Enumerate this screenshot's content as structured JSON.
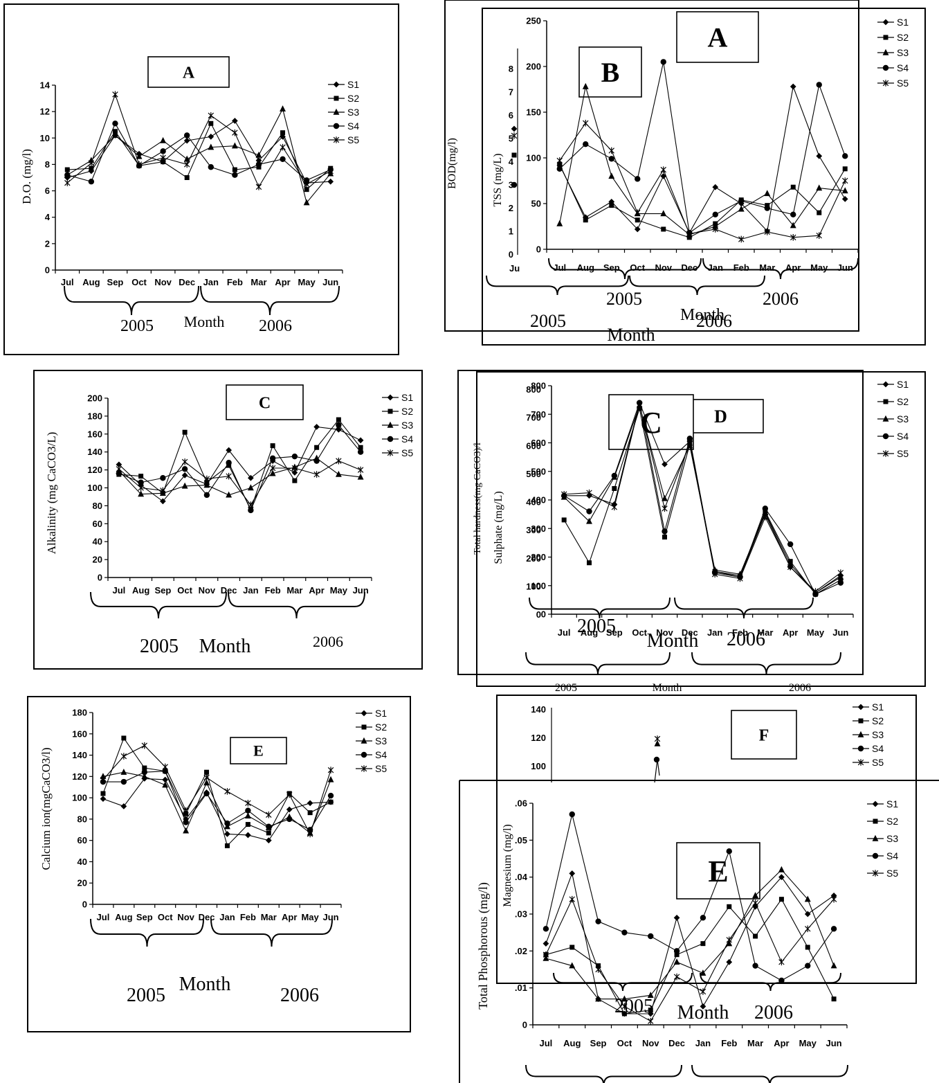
{
  "figure_title": "",
  "months": [
    "Jul",
    "Aug",
    "Sep",
    "Oct",
    "Nov",
    "Dec",
    "Jan",
    "Feb",
    "Mar",
    "Apr",
    "May",
    "Jun"
  ],
  "year_labels": [
    "2005",
    "2006"
  ],
  "month_word": "Month",
  "legend_names": [
    "S1",
    "S2",
    "S3",
    "S4",
    "S5"
  ],
  "colors": {
    "line": "#000000",
    "background": "#ffffff"
  },
  "chart_data": [
    {
      "type": "line",
      "panel_letter": "A",
      "title": "",
      "xlabel": "Month",
      "ylabel": "D.O. (mg/l)",
      "ylim": [
        0,
        14
      ],
      "yticks": [
        0,
        2,
        4,
        6,
        8,
        10,
        12,
        14
      ],
      "categories": [
        "Jul",
        "Aug",
        "Sep",
        "Oct",
        "Nov",
        "Dec",
        "Jan",
        "Feb",
        "Mar",
        "Apr",
        "May",
        "Jun"
      ],
      "series": [
        {
          "name": "S1",
          "marker": "diamond",
          "values": [
            7.0,
            7.5,
            10.2,
            8.8,
            8.2,
            9.8,
            10.1,
            11.3,
            8.3,
            10.1,
            6.6,
            6.7
          ]
        },
        {
          "name": "S2",
          "marker": "square",
          "values": [
            7.6,
            7.7,
            10.5,
            7.9,
            8.2,
            7.0,
            11.1,
            7.6,
            7.8,
            10.4,
            6.1,
            7.7
          ]
        },
        {
          "name": "S3",
          "marker": "triangle",
          "values": [
            7.2,
            8.3,
            10.2,
            8.6,
            9.8,
            8.4,
            9.3,
            9.4,
            8.7,
            12.2,
            5.1,
            7.3
          ]
        },
        {
          "name": "S4",
          "marker": "circle",
          "values": [
            7.2,
            6.7,
            11.1,
            7.9,
            9.0,
            10.2,
            7.8,
            7.2,
            8.0,
            8.4,
            6.8,
            7.6
          ]
        },
        {
          "name": "S5",
          "marker": "star",
          "values": [
            6.6,
            8.1,
            13.3,
            8.0,
            8.5,
            8.0,
            11.7,
            10.4,
            6.3,
            9.3,
            6.5,
            7.5
          ]
        }
      ]
    },
    {
      "type": "line",
      "panel_letter": "A",
      "title": "",
      "xlabel": "Month",
      "ylabel": "BOD(mg/l)",
      "ylim": [
        0,
        250
      ],
      "yticks": [
        0,
        50,
        100,
        150,
        200,
        250
      ],
      "categories": [
        "Jul",
        "Aug",
        "Sep",
        "Oct",
        "Nov",
        "Dec",
        "Jan",
        "Feb",
        "Mar",
        "Apr",
        "May",
        "Jun"
      ],
      "series": [
        {
          "name": "S1",
          "marker": "diamond",
          "values": [
            92,
            35,
            52,
            22,
            80,
            18,
            68,
            50,
            20,
            178,
            102,
            55
          ]
        },
        {
          "name": "S2",
          "marker": "square",
          "values": [
            93,
            32,
            48,
            32,
            22,
            13,
            28,
            54,
            48,
            68,
            40,
            88
          ]
        },
        {
          "name": "S3",
          "marker": "triangle",
          "values": [
            28,
            178,
            80,
            39,
            39,
            16,
            25,
            44,
            61,
            26,
            67,
            64
          ]
        },
        {
          "name": "S4",
          "marker": "circle",
          "values": [
            88,
            115,
            99,
            77,
            205,
            18,
            38,
            53,
            45,
            38,
            180,
            102
          ]
        },
        {
          "name": "S5",
          "marker": "star",
          "values": [
            97,
            138,
            108,
            40,
            87,
            17,
            22,
            11,
            19,
            13,
            15,
            75
          ]
        }
      ],
      "overlapped_panel": {
        "panel_letter": "B",
        "ylabel": "TSS (mg/L)",
        "yticks": [
          0,
          1,
          2,
          3,
          4,
          5,
          6,
          7,
          8
        ],
        "year_labels": [
          "2005",
          "2006"
        ],
        "xlabel": "Month",
        "first_tick": "Ju"
      }
    },
    {
      "type": "line",
      "panel_letter": "C",
      "title": "",
      "xlabel": "Month",
      "ylabel": "Alkalinity (mg CaCO3/L)",
      "ylim": [
        0,
        200
      ],
      "yticks": [
        0,
        20,
        40,
        60,
        80,
        100,
        120,
        140,
        160,
        180,
        200
      ],
      "categories": [
        "Jul",
        "Aug",
        "Sep",
        "Oct",
        "Nov",
        "Dec",
        "Jan",
        "Feb",
        "Mar",
        "Apr",
        "May",
        "Jun"
      ],
      "series": [
        {
          "name": "S1",
          "marker": "diamond",
          "values": [
            126,
            103,
            85,
            114,
            104,
            142,
            111,
            130,
            117,
            168,
            165,
            153
          ]
        },
        {
          "name": "S2",
          "marker": "square",
          "values": [
            115,
            113,
            94,
            162,
            106,
            125,
            76,
            147,
            108,
            145,
            176,
            145
          ]
        },
        {
          "name": "S3",
          "marker": "triangle",
          "values": [
            119,
            93,
            94,
            102,
            103,
            92,
            100,
            116,
            123,
            133,
            115,
            112
          ]
        },
        {
          "name": "S4",
          "marker": "circle",
          "values": [
            116,
            106,
            111,
            121,
            92,
            128,
            75,
            133,
            135,
            130,
            170,
            140
          ]
        },
        {
          "name": "S5",
          "marker": "star",
          "values": [
            121,
            100,
            97,
            129,
            110,
            113,
            81,
            122,
            122,
            115,
            130,
            120
          ]
        }
      ]
    },
    {
      "type": "line",
      "panel_letter": "C",
      "title": "",
      "xlabel": "Month",
      "ylabel": "Total hardness(mg CaCO3)/l",
      "ylim": [
        0,
        800
      ],
      "yticks": [
        0,
        100,
        200,
        300,
        400,
        500,
        600,
        700,
        800
      ],
      "categories": [
        "Jul",
        "Aug",
        "Sep",
        "Oct",
        "Nov",
        "Dec",
        "Jan",
        "Feb",
        "Mar",
        "Apr",
        "May",
        "Jun"
      ],
      "series": [
        {
          "name": "S1",
          "marker": "diamond",
          "values": [
            415,
            415,
            385,
            740,
            525,
            605,
            150,
            130,
            350,
            165,
            75,
            135
          ]
        },
        {
          "name": "S2",
          "marker": "square",
          "values": [
            330,
            180,
            440,
            720,
            270,
            595,
            150,
            135,
            360,
            185,
            70,
            120
          ]
        },
        {
          "name": "S3",
          "marker": "triangle",
          "values": [
            410,
            325,
            480,
            730,
            405,
            590,
            155,
            140,
            355,
            175,
            75,
            130
          ]
        },
        {
          "name": "S4",
          "marker": "circle",
          "values": [
            415,
            360,
            485,
            740,
            290,
            615,
            145,
            130,
            370,
            245,
            70,
            110
          ]
        },
        {
          "name": "S5",
          "marker": "star",
          "values": [
            420,
            425,
            375,
            735,
            370,
            600,
            140,
            125,
            340,
            165,
            80,
            145
          ]
        }
      ],
      "overlapped_panel": {
        "panel_letter": "D",
        "ylabel": "Sulphate (mg/L)",
        "yticks": [
          0,
          100,
          200,
          300,
          400,
          500,
          600,
          700,
          800
        ],
        "year_labels": [
          "2005",
          "2006"
        ],
        "xlabel": "Month"
      }
    },
    {
      "type": "line",
      "panel_letter": "E",
      "title": "",
      "xlabel": "Month",
      "ylabel": "Calcium ion(mgCaCO3/l)",
      "ylim": [
        0,
        180
      ],
      "yticks": [
        0,
        20,
        40,
        60,
        80,
        100,
        120,
        140,
        160,
        180
      ],
      "categories": [
        "Jul",
        "Aug",
        "Sep",
        "Oct",
        "Nov",
        "Dec",
        "Jan",
        "Feb",
        "Mar",
        "Apr",
        "May",
        "Jun"
      ],
      "series": [
        {
          "name": "S1",
          "marker": "diamond",
          "values": [
            99,
            92,
            118,
            117,
            80,
            105,
            66,
            65,
            60,
            89,
            95,
            96
          ]
        },
        {
          "name": "S2",
          "marker": "square",
          "values": [
            104,
            156,
            128,
            125,
            85,
            124,
            55,
            75,
            67,
            104,
            86,
            96
          ]
        },
        {
          "name": "S3",
          "marker": "triangle",
          "values": [
            120,
            124,
            120,
            112,
            69,
            114,
            73,
            83,
            72,
            82,
            67,
            117
          ]
        },
        {
          "name": "S4",
          "marker": "circle",
          "values": [
            115,
            115,
            124,
            125,
            77,
            104,
            76,
            88,
            73,
            80,
            70,
            102
          ]
        },
        {
          "name": "S5",
          "marker": "star",
          "values": [
            117,
            139,
            149,
            129,
            88,
            119,
            106,
            95,
            84,
            103,
            66,
            126
          ]
        }
      ]
    },
    {
      "type": "line",
      "panel_letter": "E",
      "title": "",
      "xlabel": "Month",
      "ylabel": "Total Phosphorous (mg/l)",
      "ylim": [
        0,
        0.06
      ],
      "yticks": [
        0,
        0.01,
        0.02,
        0.03,
        0.04,
        0.05,
        0.06
      ],
      "categories": [
        "Jul",
        "Aug",
        "Sep",
        "Oct",
        "Nov",
        "Dec",
        "Jan",
        "Feb",
        "Mar",
        "Apr",
        "May",
        "Jun"
      ],
      "series": [
        {
          "name": "S1",
          "marker": "diamond",
          "values": [
            0.022,
            0.041,
            0.007,
            0.003,
            0.003,
            0.029,
            0.005,
            0.017,
            0.032,
            0.04,
            0.03,
            0.035
          ]
        },
        {
          "name": "S2",
          "marker": "square",
          "values": [
            0.019,
            0.021,
            0.016,
            0.003,
            0.004,
            0.019,
            0.022,
            0.032,
            0.024,
            0.034,
            0.021,
            0.007
          ]
        },
        {
          "name": "S3",
          "marker": "triangle",
          "values": [
            0.018,
            0.016,
            0.007,
            0.007,
            0.008,
            0.017,
            0.014,
            0.022,
            0.035,
            0.042,
            0.034,
            0.016
          ]
        },
        {
          "name": "S4",
          "marker": "circle",
          "values": [
            0.026,
            0.057,
            0.028,
            0.025,
            0.024,
            0.02,
            0.029,
            0.047,
            0.016,
            0.012,
            0.016,
            0.026
          ]
        },
        {
          "name": "S5",
          "marker": "star",
          "values": [
            0.019,
            0.034,
            0.015,
            0.005,
            0.001,
            0.013,
            0.009,
            0.023,
            0.033,
            0.017,
            0.026,
            0.034
          ]
        }
      ],
      "overlapped_panel": {
        "panel_letter": "F",
        "ylabel": "Magnesium (mg/l)",
        "yticks": [
          100,
          120,
          140
        ],
        "year_labels": [
          "2005",
          "2006"
        ],
        "xlabel": "Month"
      }
    }
  ]
}
